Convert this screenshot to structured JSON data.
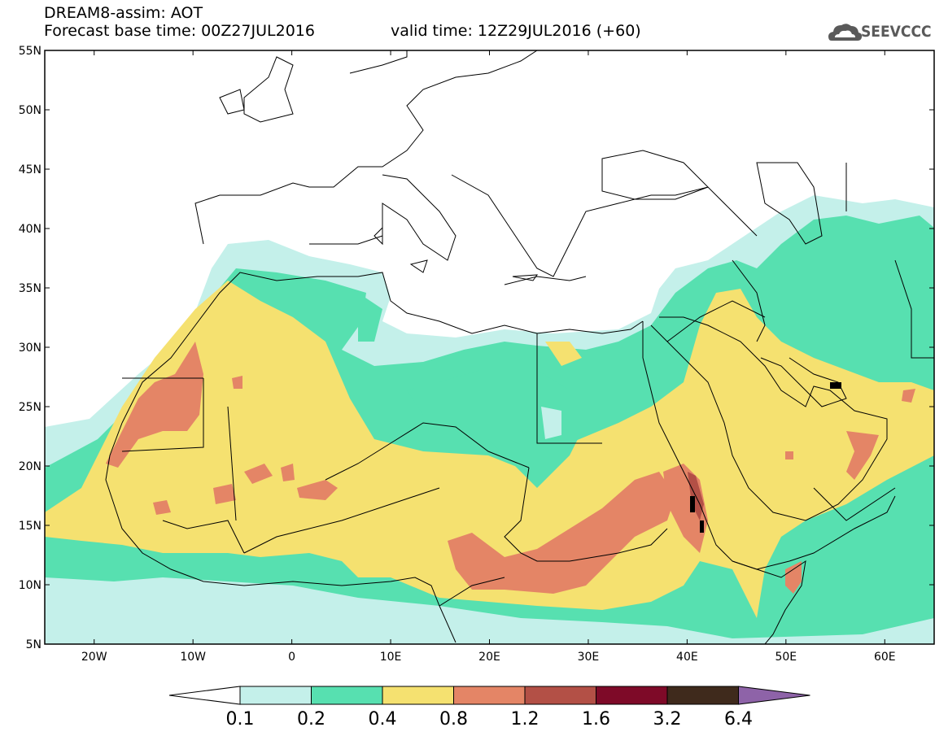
{
  "header": {
    "model_line": "DREAM8-assim: AOT",
    "base_time_line": "Forecast base time: 00Z27JUL2016",
    "valid_time_line": "valid time: 12Z29JUL2016 (+60)",
    "logo_text": "SEEVCCC",
    "logo_icon": "cloud-icon"
  },
  "map": {
    "lon_range": [
      -25,
      65
    ],
    "lat_range": [
      5,
      55
    ],
    "lat_labels": [
      "55N",
      "50N",
      "45N",
      "40N",
      "35N",
      "30N",
      "25N",
      "20N",
      "15N",
      "10N",
      "5N"
    ],
    "lon_labels": [
      "20W",
      "10W",
      "0",
      "10E",
      "20E",
      "30E",
      "40E",
      "50E",
      "60E"
    ]
  },
  "legend": {
    "levels": [
      "0.1",
      "0.2",
      "0.4",
      "0.8",
      "1.2",
      "1.6",
      "3.2",
      "6.4"
    ],
    "colors": [
      "#c4f0ea",
      "#57e0b0",
      "#f5e170",
      "#e48566",
      "#b35046",
      "#7e0a28",
      "#3f2a1c",
      "#8e63a8"
    ],
    "under_color": "#ffffff"
  }
}
